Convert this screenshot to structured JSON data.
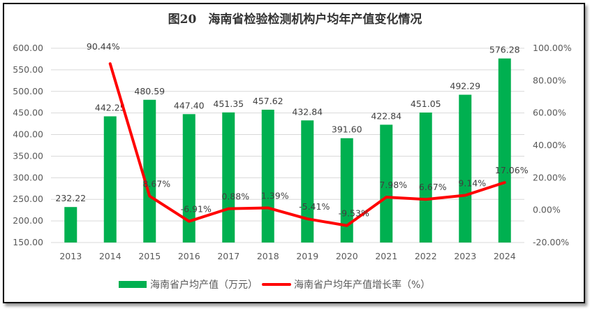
{
  "chart_data": {
    "type": "bar+line",
    "title": "图20　海南省检验检测机构户均年产值变化情况",
    "categories": [
      "2013",
      "2014",
      "2015",
      "2016",
      "2017",
      "2018",
      "2019",
      "2020",
      "2021",
      "2022",
      "2023",
      "2024"
    ],
    "series": [
      {
        "name": "海南省户均产值（万元）",
        "type": "bar",
        "axis": "left",
        "color": "#00b050",
        "values": [
          232.22,
          442.25,
          480.59,
          447.4,
          451.35,
          457.62,
          432.84,
          391.6,
          422.84,
          451.05,
          492.29,
          576.28
        ],
        "labels": [
          "232.22",
          "442.25",
          "480.59",
          "447.40",
          "451.35",
          "457.62",
          "432.84",
          "391.60",
          "422.84",
          "451.05",
          "492.29",
          "576.28"
        ]
      },
      {
        "name": "海南省户均年产值增长率（%）",
        "type": "line",
        "axis": "right",
        "color": "#ff0000",
        "values": [
          null,
          90.44,
          8.67,
          -6.91,
          0.88,
          1.39,
          -5.41,
          -9.53,
          7.98,
          6.67,
          9.14,
          17.06
        ],
        "labels": [
          "",
          "90.44%",
          "8.67%",
          "-6.91%",
          "0.88%",
          "1.39%",
          "-5.41%",
          "-9.53%",
          "7.98%",
          "6.67%",
          "9.14%",
          "17.06%"
        ]
      }
    ],
    "y_left": {
      "range": [
        150,
        600
      ],
      "ticks": [
        "150.00",
        "200.00",
        "250.00",
        "300.00",
        "350.00",
        "400.00",
        "450.00",
        "500.00",
        "550.00",
        "600.00"
      ]
    },
    "y_right": {
      "range": [
        -20,
        100
      ],
      "ticks": [
        "-20.00%",
        "0.00%",
        "20.00%",
        "40.00%",
        "60.00%",
        "80.00%",
        "100.00%"
      ]
    },
    "grid": true,
    "legend": "bottom"
  }
}
